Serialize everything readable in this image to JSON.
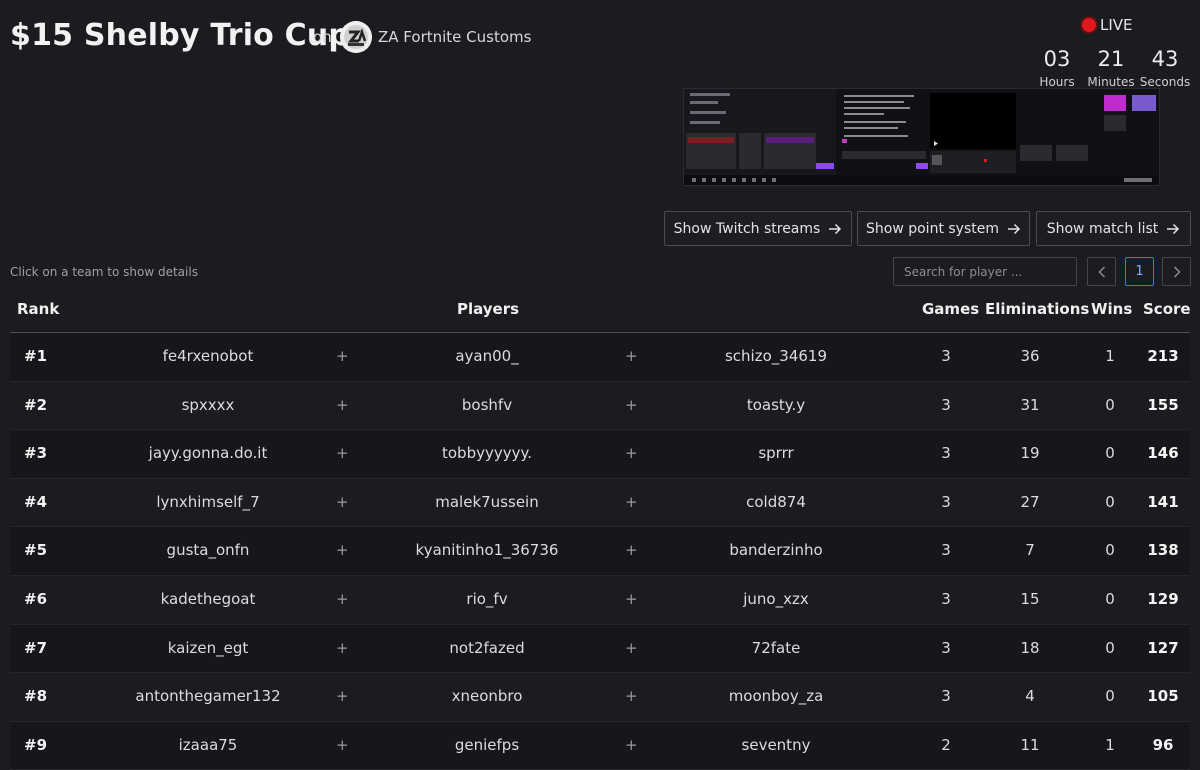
{
  "header": {
    "title": "$15 Shelby Trio Cup",
    "on_label": "on",
    "organizer": "ZA Fortnite Customs",
    "live_label": "LIVE"
  },
  "countdown": {
    "hours": "03",
    "hours_label": "Hours",
    "minutes": "21",
    "minutes_label": "Minutes",
    "seconds": "43",
    "seconds_label": "Seconds"
  },
  "buttons": {
    "twitch": "Show Twitch streams",
    "points": "Show point system",
    "matches": "Show match list"
  },
  "hint": "Click on a team to show details",
  "search": {
    "placeholder": "Search for player ..."
  },
  "pagination": {
    "prev": "<",
    "current": "1",
    "next": ">"
  },
  "table": {
    "headers": {
      "rank": "Rank",
      "players": "Players",
      "games": "Games",
      "elims": "Eliminations",
      "wins": "Wins",
      "score": "Score"
    },
    "separator": "+",
    "rows": [
      {
        "rank": "#1",
        "p1": "fe4rxenobot",
        "p2": "ayan00_",
        "p3": "schizo_34619",
        "games": "3",
        "elims": "36",
        "wins": "1",
        "score": "213"
      },
      {
        "rank": "#2",
        "p1": "spxxxx",
        "p2": "boshfv",
        "p3": "toasty.y",
        "games": "3",
        "elims": "31",
        "wins": "0",
        "score": "155"
      },
      {
        "rank": "#3",
        "p1": "jayy.gonna.do.it",
        "p2": "tobbyyyyyy.",
        "p3": "sprrr",
        "games": "3",
        "elims": "19",
        "wins": "0",
        "score": "146"
      },
      {
        "rank": "#4",
        "p1": "lynxhimself_7",
        "p2": "malek7ussein",
        "p3": "cold874",
        "games": "3",
        "elims": "27",
        "wins": "0",
        "score": "141"
      },
      {
        "rank": "#5",
        "p1": "gusta_onfn",
        "p2": "kyanitinho1_36736",
        "p3": "banderzinho",
        "games": "3",
        "elims": "7",
        "wins": "0",
        "score": "138"
      },
      {
        "rank": "#6",
        "p1": "kadethegoat",
        "p2": "rio_fv",
        "p3": "juno_xzx",
        "games": "3",
        "elims": "15",
        "wins": "0",
        "score": "129"
      },
      {
        "rank": "#7",
        "p1": "kaizen_egt",
        "p2": "not2fazed",
        "p3": "72fate",
        "games": "3",
        "elims": "18",
        "wins": "0",
        "score": "127"
      },
      {
        "rank": "#8",
        "p1": "antonthegamer132",
        "p2": "xneonbro",
        "p3": "moonboy_za",
        "games": "3",
        "elims": "4",
        "wins": "0",
        "score": "105"
      },
      {
        "rank": "#9",
        "p1": "izaaa75",
        "p2": "geniefps",
        "p3": "seventny",
        "games": "2",
        "elims": "11",
        "wins": "1",
        "score": "96"
      }
    ]
  },
  "colors": {
    "background": "#1b1c20",
    "live": "#e0191c",
    "accent": "#3d7bd8"
  },
  "icons": {
    "arrow": "arrow-right-icon",
    "live": "live-dot-icon"
  }
}
